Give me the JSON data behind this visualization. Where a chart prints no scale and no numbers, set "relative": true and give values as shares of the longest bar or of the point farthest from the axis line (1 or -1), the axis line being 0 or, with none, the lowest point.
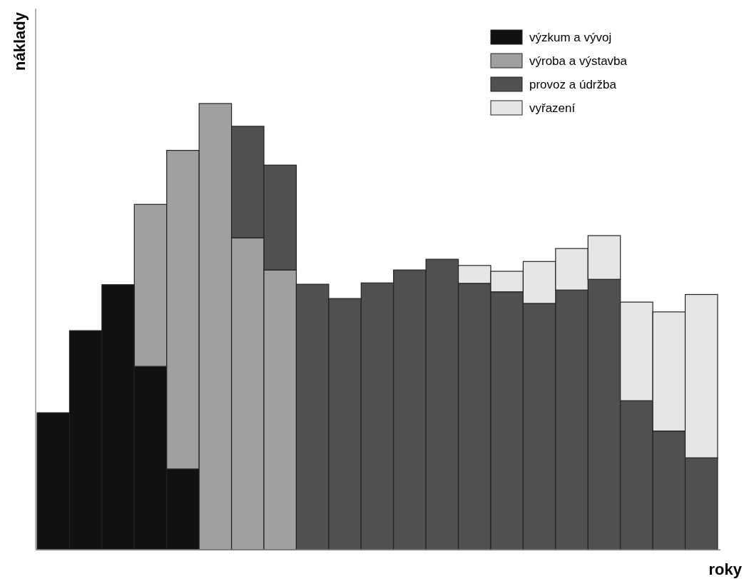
{
  "chart_data": {
    "type": "bar",
    "stacked": true,
    "relative": true,
    "xlabel": "roky",
    "ylabel": "náklady",
    "legend": "top right",
    "categories": [
      null,
      null,
      null,
      null,
      null,
      null,
      null,
      null,
      null,
      null,
      null,
      null,
      null,
      null,
      null,
      null,
      null,
      null,
      null,
      null,
      null
    ],
    "series": [
      {
        "name": "výzkum a vývoj",
        "color": "#111111",
        "values": [
          0.307,
          0.491,
          0.594,
          0.411,
          0.181,
          null,
          null,
          null,
          null,
          null,
          null,
          null,
          null,
          null,
          null,
          null,
          null,
          null,
          null,
          null,
          null
        ]
      },
      {
        "name": "výroba a výstavba",
        "color": "#a0a0a0",
        "values": [
          null,
          null,
          null,
          0.363,
          0.714,
          1,
          0.699,
          0.627,
          null,
          null,
          null,
          null,
          null,
          null,
          null,
          null,
          null,
          null,
          null,
          null,
          null
        ]
      },
      {
        "name": "provoz a údržba",
        "color": "#505052",
        "values": [
          null,
          null,
          null,
          null,
          null,
          null,
          0.25,
          0.235,
          0.595,
          0.563,
          0.598,
          0.627,
          0.651,
          0.597,
          0.578,
          0.552,
          0.582,
          0.606,
          0.334,
          0.266,
          0.206
        ]
      },
      {
        "name": "vyřazení",
        "color": "#e6e6e6",
        "values": [
          null,
          null,
          null,
          null,
          null,
          null,
          null,
          null,
          null,
          null,
          null,
          null,
          null,
          0.04,
          0.046,
          0.094,
          0.093,
          0.098,
          0.221,
          0.267,
          0.366
        ]
      }
    ]
  }
}
